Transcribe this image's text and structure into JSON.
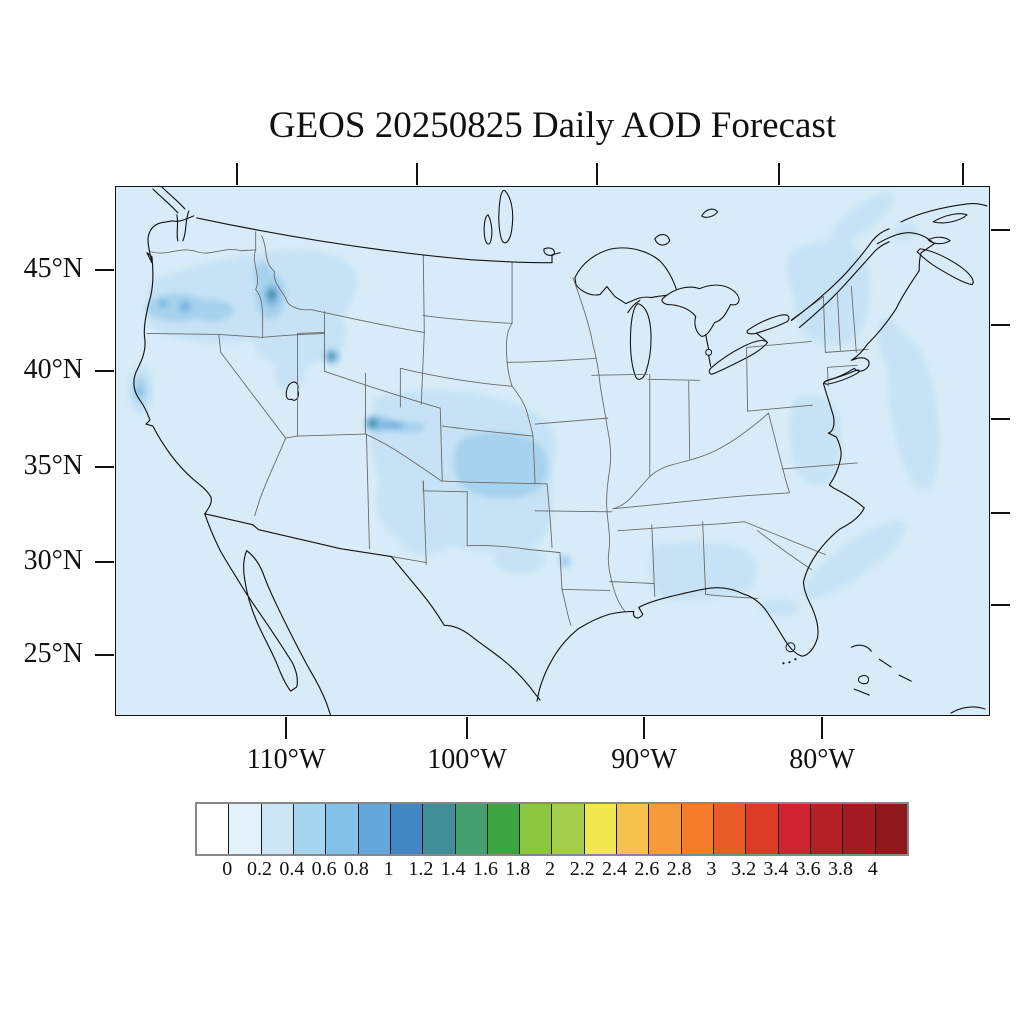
{
  "title": "GEOS 20250825 Daily AOD Forecast",
  "map": {
    "lat_axis": {
      "labels": [
        "45°N",
        "40°N",
        "35°N",
        "30°N",
        "25°N"
      ]
    },
    "lon_axis": {
      "labels": [
        "110°W",
        "100°W",
        "90°W",
        "80°W"
      ]
    },
    "background_color": "#D7ECF8",
    "state_line_color": "#6a6a6a",
    "coast_line_color": "#151515"
  },
  "colorbar": {
    "tick_labels": [
      "0",
      "0.2",
      "0.4",
      "0.6",
      "0.8",
      "1",
      "1.2",
      "1.4",
      "1.6",
      "1.8",
      "2",
      "2.2",
      "2.4",
      "2.6",
      "2.8",
      "3",
      "3.2",
      "3.4",
      "3.6",
      "3.8",
      "4"
    ],
    "colors": [
      "#FFFFFF",
      "#E3F2FA",
      "#CDE6F6",
      "#A6D5F0",
      "#84C1E8",
      "#64A8DB",
      "#4287C4",
      "#3F8F99",
      "#45A070",
      "#3DA53F",
      "#8CC63F",
      "#A6CE4D",
      "#F2E74F",
      "#F6C14D",
      "#F79B3D",
      "#F87C2B",
      "#E95C29",
      "#DE3B27",
      "#D0222F",
      "#B51F26",
      "#A31B20",
      "#8E181C"
    ]
  },
  "aod_features": {
    "type": "filled-contour map of aerosol optical depth over the United States",
    "background_aod": "0.0-0.2 everywhere (pale blue)",
    "hotspots": [
      {
        "region": "central Idaho",
        "approx_lat": 44.0,
        "approx_lon": -114.5,
        "peak_aod": 1.5
      },
      {
        "region": "southwest Wyoming",
        "approx_lat": 41.0,
        "approx_lon": -110.5,
        "peak_aod": 1.5
      },
      {
        "region": "south-central Colorado",
        "approx_lat": 37.3,
        "approx_lon": -106.0,
        "peak_aod": 1.5
      },
      {
        "region": "eastern Oregon",
        "approx_lat": 44.0,
        "approx_lon": -118.0,
        "peak_aod": 0.8
      },
      {
        "region": "northern California",
        "approx_lat": 39.5,
        "approx_lon": -122.5,
        "peak_aod": 0.7
      }
    ],
    "light_plumes_aod_0.2_0.6": [
      "Pacific Northwest (Oregon, Idaho, northern Utah)",
      "central plains (eastern Colorado, Nebraska, Kansas, Oklahoma)",
      "Northeast (eastern New York, Vermont, New Hampshire, St. Lawrence valley)",
      "mid-Atlantic and Chesapeake Bay, offshore Atlantic",
      "southern Alabama and Georgia, offshore Southeast coast"
    ]
  }
}
